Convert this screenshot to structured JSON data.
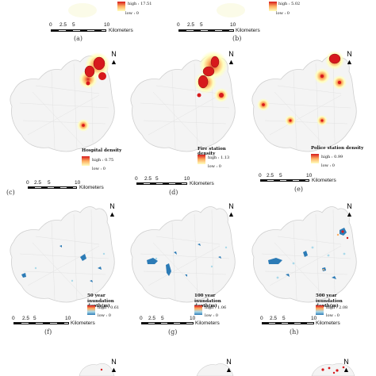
{
  "scale_ticks": [
    "0",
    "2.5",
    "5",
    "10"
  ],
  "scale_unit": "Kilometers",
  "north_label": "N",
  "colors": {
    "boundary": "#cfcfcf",
    "road": "#e6e6e6",
    "density_core": "#d7191c",
    "density_mid": "#fdae61",
    "density_low": "#ffffbf",
    "flood_blue": "#2c7bb6",
    "flood_cyan": "#abd9e9"
  },
  "top_row": {
    "a": {
      "label": "(a)",
      "high": "high : 17.51",
      "low": "low : 0"
    },
    "b": {
      "label": "(b)",
      "high": "high : 5.02",
      "low": "low : 0"
    }
  },
  "density_row": {
    "c": {
      "label": "(c)",
      "title": "Hospital density",
      "high": "high : 0.75",
      "low": "low : 0"
    },
    "d": {
      "label": "(d)",
      "title": "Fire station density",
      "high": "high : 1.13",
      "low": "low : 0"
    },
    "e": {
      "label": "(e)",
      "title": "Police station density",
      "high": "high : 0.99",
      "low": "low : 0"
    }
  },
  "flood_row": {
    "f": {
      "label": "(f)",
      "title1": "50 year",
      "title2": "inundation depth(m)",
      "high": "high : 0.61",
      "low": "low : 0"
    },
    "g": {
      "label": "(g)",
      "title1": "100 year",
      "title2": "inundation depth(m)",
      "high": "high : 1.06",
      "low": "low : 0"
    },
    "h": {
      "label": "(h)",
      "title1": "500 year",
      "title2": "inundation depth(m)",
      "high": "high : 2.08",
      "low": "low : 0"
    }
  }
}
